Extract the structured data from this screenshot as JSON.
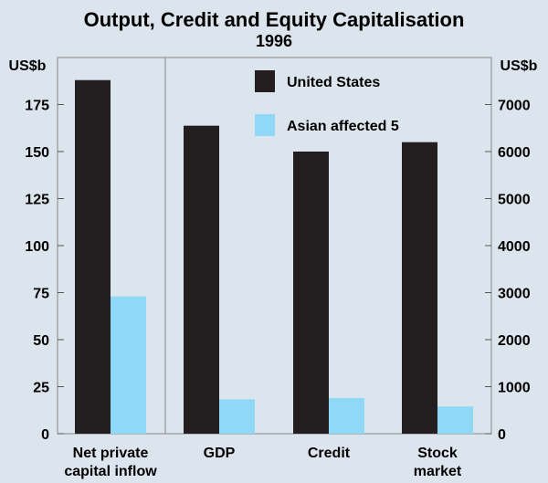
{
  "chart_data": {
    "type": "bar",
    "title": "Output, Credit and Equity Capitalisation",
    "subtitle": "1996",
    "categories": [
      [
        "Net private",
        "capital inflow"
      ],
      [
        "GDP"
      ],
      [
        "Credit"
      ],
      [
        "Stock",
        "market"
      ]
    ],
    "axis_assignment": [
      "left",
      "right",
      "right",
      "right"
    ],
    "series": [
      {
        "name": "United States",
        "color": "#231f20",
        "values": [
          188,
          6550,
          6000,
          6200
        ]
      },
      {
        "name": "Asian affected 5",
        "color": "#8fd8f6",
        "values": [
          73,
          730,
          760,
          580
        ]
      }
    ],
    "left_axis": {
      "label": "US$b",
      "min": 0,
      "max": 200,
      "ticks": [
        "0",
        "25",
        "50",
        "75",
        "100",
        "125",
        "150",
        "175"
      ]
    },
    "right_axis": {
      "label": "US$b",
      "min": 0,
      "max": 8000,
      "ticks": [
        "0",
        "1000",
        "2000",
        "3000",
        "4000",
        "5000",
        "6000",
        "7000"
      ]
    },
    "legend_position": "top-center",
    "background": "#dce5ee"
  }
}
